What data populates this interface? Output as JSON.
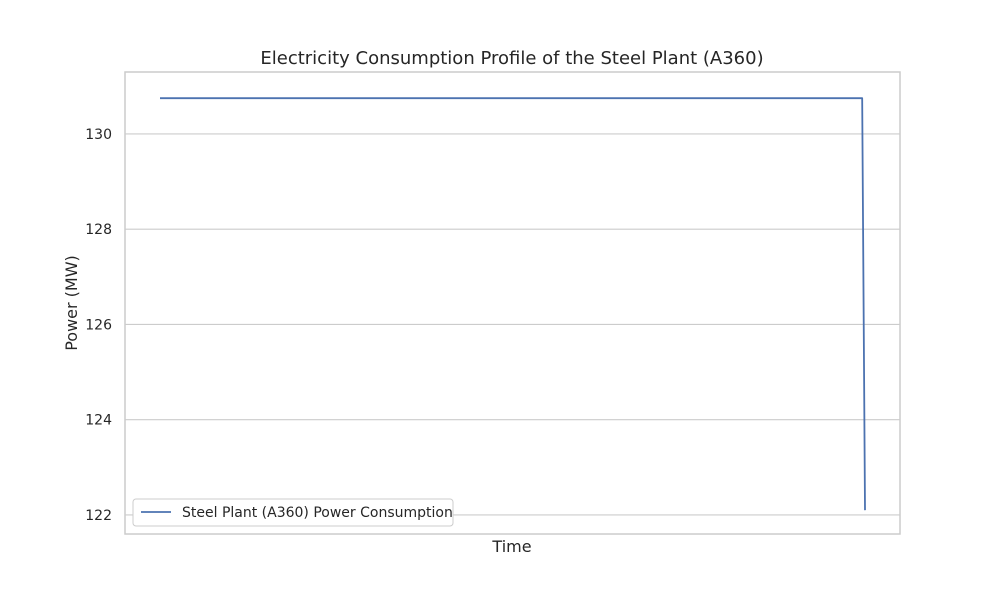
{
  "chart_data": {
    "type": "line",
    "title": "Electricity Consumption Profile of the Steel Plant (A360)",
    "xlabel": "Time",
    "ylabel": "Power (MW)",
    "x_ticks": [],
    "y_ticks": [
      122,
      124,
      126,
      128,
      130
    ],
    "xlim": [
      0,
      100
    ],
    "ylim": [
      121.6,
      131.3
    ],
    "grid": "horizontal",
    "legend": "lower-left",
    "series": [
      {
        "name": "Steel Plant (A360) Power Consumption",
        "color": "#4c72b0",
        "x": [
          0,
          99.6,
          100
        ],
        "y": [
          130.75,
          130.75,
          122.1
        ]
      }
    ]
  }
}
